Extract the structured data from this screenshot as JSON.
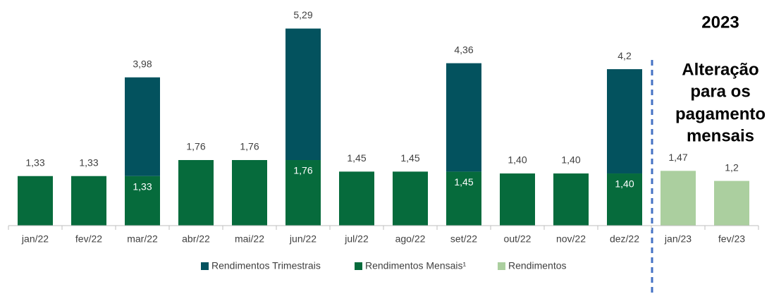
{
  "chart_data": {
    "type": "stacked_bar",
    "categories": [
      "jan/22",
      "fev/22",
      "mar/22",
      "abr/22",
      "mai/22",
      "jun/22",
      "jul/22",
      "ago/22",
      "set/22",
      "out/22",
      "nov/22",
      "dez/22",
      "jan/23",
      "fev/23"
    ],
    "series": [
      {
        "name": "Rendimentos Trimestrais",
        "color": "#03525e",
        "values": [
          null,
          null,
          2.65,
          null,
          null,
          3.53,
          null,
          null,
          2.91,
          null,
          null,
          2.8,
          null,
          null
        ]
      },
      {
        "name": "Rendimentos Mensais¹",
        "color": "#066b3c",
        "values": [
          1.33,
          1.33,
          1.33,
          1.76,
          1.76,
          1.76,
          1.45,
          1.45,
          1.45,
          1.4,
          1.4,
          1.4,
          null,
          null
        ],
        "value_labels": [
          "1,33",
          "1,33",
          "1,33",
          "1,76",
          "1,76",
          "1,76",
          "1,45",
          "1,45",
          "1,45",
          "1,40",
          "1,40",
          "1,40",
          null,
          null
        ]
      },
      {
        "name": "Rendimentos",
        "color": "#abcf9f",
        "values": [
          null,
          null,
          null,
          null,
          null,
          null,
          null,
          null,
          null,
          null,
          null,
          null,
          1.47,
          1.2
        ],
        "value_labels": [
          null,
          null,
          null,
          null,
          null,
          null,
          null,
          null,
          null,
          null,
          null,
          null,
          "1,47",
          "1,2"
        ]
      }
    ],
    "stack_totals": [
      null,
      null,
      3.98,
      null,
      null,
      5.29,
      null,
      null,
      4.36,
      null,
      null,
      4.2,
      null,
      null
    ],
    "stack_total_labels": [
      null,
      null,
      "3,98",
      null,
      null,
      "5,29",
      null,
      null,
      "4,36",
      null,
      null,
      "4,2",
      null,
      null
    ],
    "ylim": [
      0,
      6
    ],
    "legend": "bottom",
    "annotations": {
      "year": "2023",
      "note": [
        "Alteração",
        "para os",
        "pagamento",
        "mensais"
      ]
    }
  }
}
